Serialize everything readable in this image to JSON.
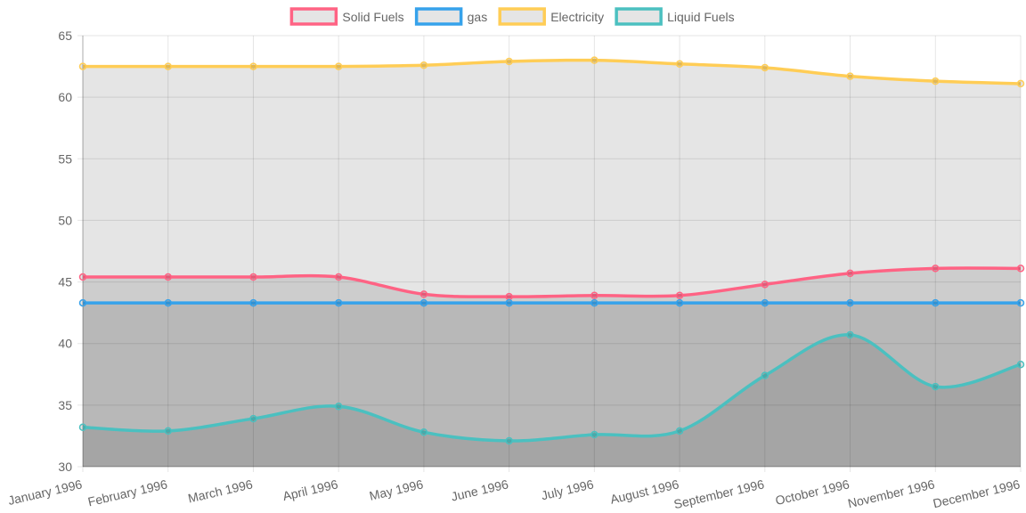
{
  "chart_data": {
    "type": "line",
    "categories": [
      "January 1996",
      "February 1996",
      "March 1996",
      "April 1996",
      "May 1996",
      "June 1996",
      "July 1996",
      "August 1996",
      "September 1996",
      "October 1996",
      "November 1996",
      "December 1996"
    ],
    "ylim": [
      30,
      65
    ],
    "yticks": [
      30,
      35,
      40,
      45,
      50,
      55,
      60,
      65
    ],
    "grid": true,
    "legend_position": "top",
    "series": [
      {
        "name": "Solid Fuels",
        "color": "#ff6384",
        "values": [
          45.4,
          45.4,
          45.4,
          45.4,
          44.0,
          43.8,
          43.9,
          43.9,
          44.8,
          45.7,
          46.1,
          46.1
        ]
      },
      {
        "name": "gas",
        "color": "#36a2eb",
        "values": [
          43.3,
          43.3,
          43.3,
          43.3,
          43.3,
          43.3,
          43.3,
          43.3,
          43.3,
          43.3,
          43.3,
          43.3
        ]
      },
      {
        "name": "Electricity",
        "color": "#ffcd56",
        "values": [
          62.5,
          62.5,
          62.5,
          62.5,
          62.6,
          62.9,
          63.0,
          62.7,
          62.4,
          61.7,
          61.3,
          61.1
        ]
      },
      {
        "name": "Liquid Fuels",
        "color": "#4bc0c0",
        "values": [
          33.2,
          32.9,
          33.9,
          34.9,
          32.8,
          32.1,
          32.6,
          32.9,
          37.4,
          40.7,
          36.5,
          38.3
        ]
      }
    ]
  }
}
